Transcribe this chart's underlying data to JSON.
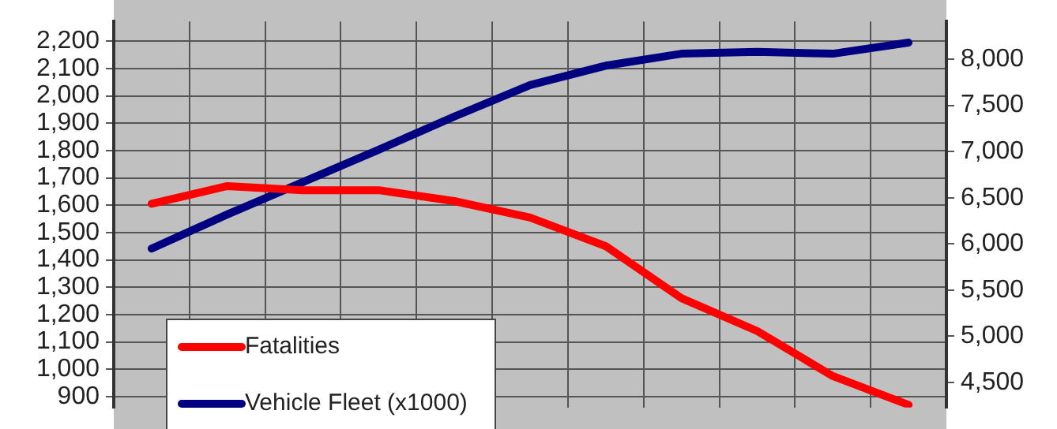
{
  "chart_data": {
    "type": "line",
    "categories": [
      null,
      null,
      null,
      null,
      null,
      null,
      null,
      null,
      null,
      null,
      null
    ],
    "series": [
      {
        "name": "Fatalities",
        "color": "#ff0000",
        "values": [
          1605,
          1670,
          1655,
          1655,
          1615,
          1555,
          1450,
          1260,
          1140,
          975,
          870
        ]
      },
      {
        "name": "Vehicle Fleet (x1000)",
        "color": "#000080",
        "axis": "y2",
        "values": [
          5950,
          6320,
          6670,
          7020,
          7380,
          7720,
          7930,
          8060,
          8080,
          8060,
          8180
        ]
      }
    ],
    "ylim": [
      860,
      2272
    ],
    "yticks": [
      {
        "value": 900,
        "label": "900"
      },
      {
        "value": 1000,
        "label": "1,000"
      },
      {
        "value": 1100,
        "label": "1,100"
      },
      {
        "value": 1200,
        "label": "1,200"
      },
      {
        "value": 1300,
        "label": "1,300"
      },
      {
        "value": 1400,
        "label": "1,400"
      },
      {
        "value": 1500,
        "label": "1,500"
      },
      {
        "value": 1600,
        "label": "1,600"
      },
      {
        "value": 1700,
        "label": "1,700"
      },
      {
        "value": 1800,
        "label": "1,800"
      },
      {
        "value": 1900,
        "label": "1,900"
      },
      {
        "value": 2000,
        "label": "2,000"
      },
      {
        "value": 2100,
        "label": "2,100"
      },
      {
        "value": 2200,
        "label": "2,200"
      }
    ],
    "y2lim": [
      4229,
      8409
    ],
    "y2ticks": [
      {
        "value": 4500,
        "label": "4,500"
      },
      {
        "value": 5000,
        "label": "5,000"
      },
      {
        "value": 5500,
        "label": "5,500"
      },
      {
        "value": 6000,
        "label": "6,000"
      },
      {
        "value": 6500,
        "label": "6,500"
      },
      {
        "value": 7000,
        "label": "7,000"
      },
      {
        "value": 7500,
        "label": "7,500"
      },
      {
        "value": 8000,
        "label": "8,000"
      }
    ],
    "grid": true,
    "legend": "bottom left",
    "marker": "none",
    "tick_labels": "y"
  }
}
